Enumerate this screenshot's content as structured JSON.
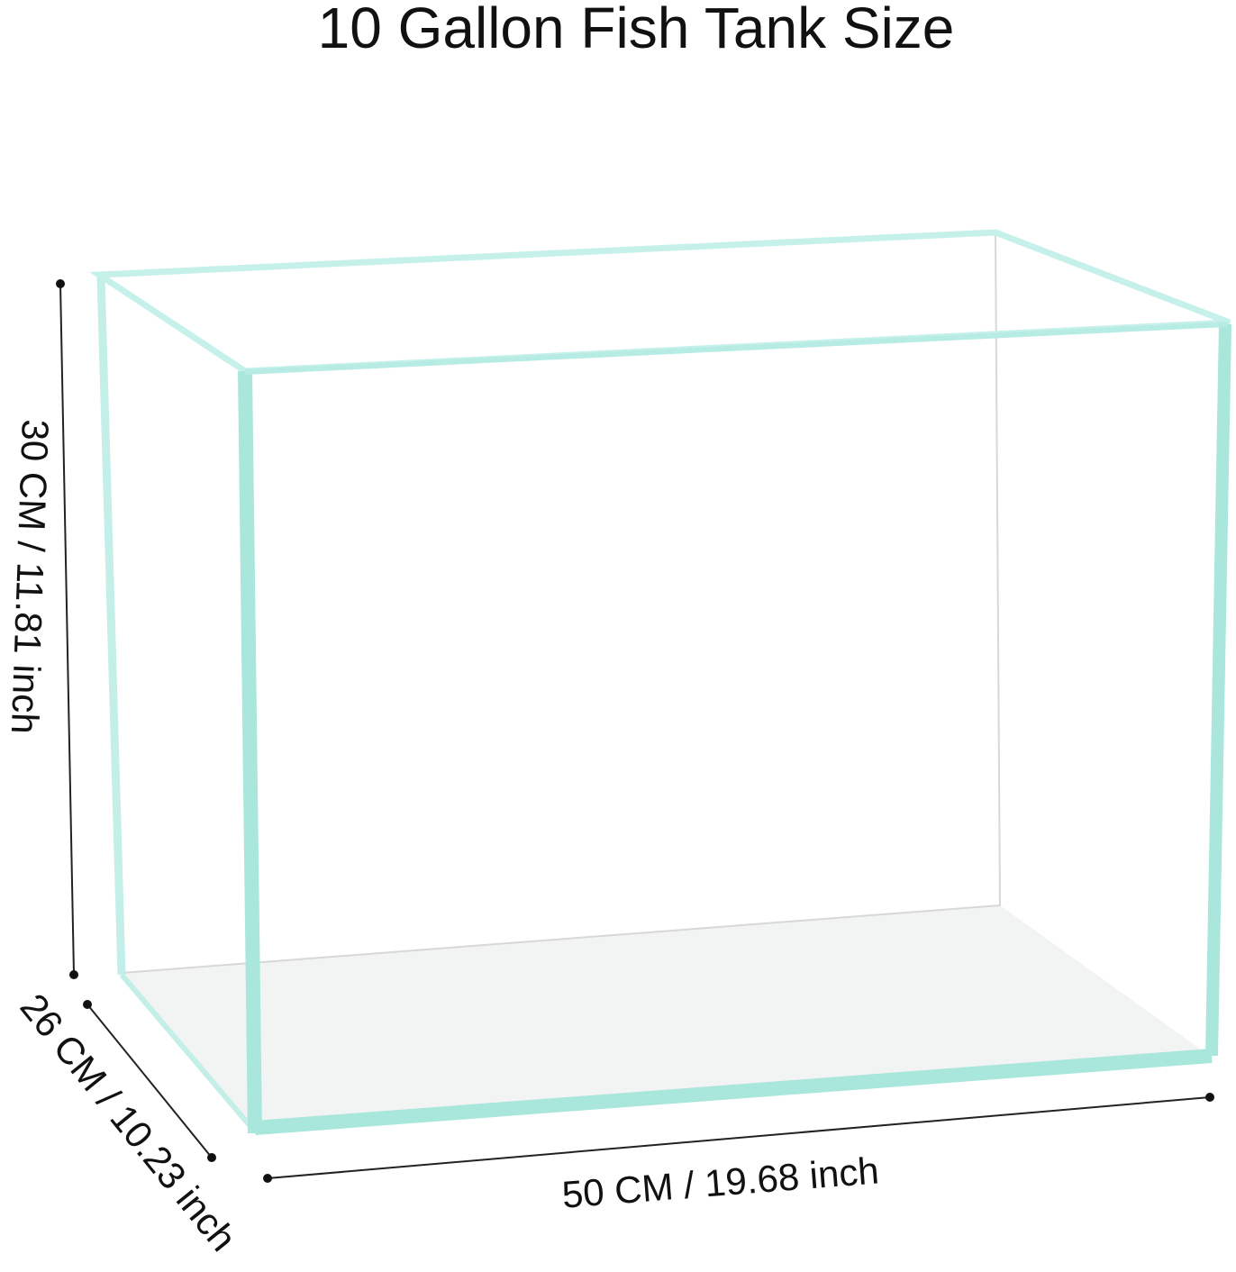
{
  "title": "10 Gallon Fish Tank Size",
  "dimensions": {
    "height": "30 CM / 11.81 inch",
    "depth": "26 CM / 10.23 inch",
    "width": "50 CM / 19.68 inch"
  }
}
